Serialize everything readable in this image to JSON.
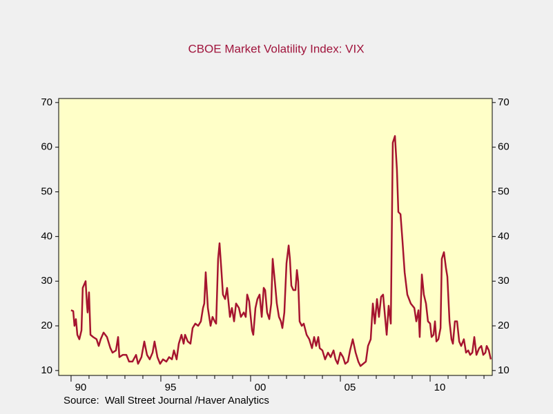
{
  "chart_data": {
    "type": "line",
    "title": "CBOE Market Volatility Index: VIX",
    "source": "Source:  Wall Street Journal /Haver Analytics",
    "xlim": [
      1989.31,
      2013.46
    ],
    "xticks": [
      {
        "value": 1990,
        "label": "90"
      },
      {
        "value": 1995,
        "label": "95"
      },
      {
        "value": 2000,
        "label": "00"
      },
      {
        "value": 2005,
        "label": "05"
      },
      {
        "value": 2010,
        "label": "10"
      }
    ],
    "xminor_ticks": [
      1991,
      1992,
      1993,
      1994,
      1996,
      1997,
      1998,
      1999,
      2001,
      2002,
      2003,
      2004,
      2006,
      2007,
      2008,
      2009,
      2011,
      2012,
      2013
    ],
    "ylim": [
      8.9,
      70.9
    ],
    "yticks": [
      10,
      20,
      30,
      40,
      50,
      60,
      70
    ],
    "y2lim": [
      8.9,
      70.9
    ],
    "y2ticks": [
      10,
      20,
      30,
      40,
      50,
      60,
      70
    ],
    "background": "#ffffc8",
    "series": [
      {
        "color": "#a5142f",
        "x": [
          1990.0,
          1990.12,
          1990.19,
          1990.27,
          1990.35,
          1990.46,
          1990.58,
          1990.65,
          1990.81,
          1990.88,
          1990.92,
          1991.0,
          1991.08,
          1991.23,
          1991.42,
          1991.54,
          1991.65,
          1991.81,
          1992.0,
          1992.19,
          1992.31,
          1992.5,
          1992.62,
          1992.69,
          1992.88,
          1993.08,
          1993.23,
          1993.42,
          1993.62,
          1993.73,
          1993.92,
          1994.08,
          1994.23,
          1994.38,
          1994.54,
          1994.65,
          1994.81,
          1994.96,
          1995.12,
          1995.31,
          1995.46,
          1995.62,
          1995.73,
          1995.88,
          1996.0,
          1996.15,
          1996.27,
          1996.35,
          1996.5,
          1996.65,
          1996.77,
          1996.92,
          1997.08,
          1997.23,
          1997.35,
          1997.42,
          1997.5,
          1997.62,
          1997.77,
          1997.88,
          1998.0,
          1998.08,
          1998.19,
          1998.27,
          1998.38,
          1998.46,
          1998.58,
          1998.69,
          1998.85,
          1998.96,
          1999.08,
          1999.19,
          1999.35,
          1999.46,
          1999.62,
          1999.73,
          1999.81,
          1999.92,
          2000.08,
          2000.15,
          2000.27,
          2000.38,
          2000.5,
          2000.62,
          2000.73,
          2000.81,
          2000.92,
          2001.04,
          2001.15,
          2001.23,
          2001.35,
          2001.46,
          2001.58,
          2001.69,
          2001.77,
          2001.88,
          2002.0,
          2002.12,
          2002.19,
          2002.27,
          2002.38,
          2002.5,
          2002.58,
          2002.65,
          2002.73,
          2002.85,
          2002.96,
          2003.12,
          2003.27,
          2003.42,
          2003.54,
          2003.65,
          2003.77,
          2003.85,
          2004.0,
          2004.15,
          2004.31,
          2004.46,
          2004.62,
          2004.73,
          2004.85,
          2005.0,
          2005.15,
          2005.27,
          2005.42,
          2005.54,
          2005.69,
          2005.85,
          2006.0,
          2006.12,
          2006.27,
          2006.42,
          2006.54,
          2006.69,
          2006.81,
          2006.92,
          2007.04,
          2007.15,
          2007.27,
          2007.38,
          2007.5,
          2007.58,
          2007.69,
          2007.81,
          2007.92,
          2008.04,
          2008.15,
          2008.23,
          2008.35,
          2008.46,
          2008.58,
          2008.73,
          2008.92,
          2009.12,
          2009.23,
          2009.35,
          2009.42,
          2009.54,
          2009.65,
          2009.77,
          2009.88,
          2010.0,
          2010.08,
          2010.19,
          2010.27,
          2010.35,
          2010.46,
          2010.58,
          2010.65,
          2010.77,
          2010.88,
          2010.96,
          2011.08,
          2011.19,
          2011.27,
          2011.38,
          2011.5,
          2011.62,
          2011.73,
          2011.88,
          2012.0,
          2012.12,
          2012.23,
          2012.35,
          2012.46,
          2012.58,
          2012.73,
          2012.85,
          2012.96,
          2013.08,
          2013.15,
          2013.27,
          2013.38
        ],
        "values": [
          23.5,
          23.3,
          20,
          21.5,
          18,
          17,
          19,
          28.5,
          30,
          25,
          23,
          27.5,
          18,
          17.5,
          17,
          15.5,
          17,
          18.5,
          17.5,
          15,
          14,
          14.5,
          17.5,
          13,
          13.5,
          13.5,
          12,
          12,
          13.5,
          11.5,
          13,
          16.5,
          13.5,
          12.5,
          14,
          16.5,
          13,
          11.5,
          12.5,
          12,
          13,
          12.5,
          14.5,
          12.5,
          16,
          18,
          16,
          18,
          16.5,
          16,
          19.5,
          20.5,
          20,
          21,
          24,
          25,
          32,
          24,
          20,
          22,
          21,
          20.5,
          35,
          38.5,
          32,
          27,
          26,
          28.5,
          22,
          24,
          21,
          25,
          24,
          22,
          23,
          22,
          27,
          25.5,
          19,
          18,
          24,
          26,
          27,
          22,
          28.5,
          28,
          23,
          21.5,
          25,
          35,
          30,
          25,
          22,
          21,
          19.5,
          23,
          34,
          38,
          35,
          29,
          28,
          28,
          32.5,
          30,
          21,
          20,
          20.5,
          18,
          17,
          15,
          17.5,
          15.5,
          17.5,
          15,
          14.5,
          12.5,
          14,
          13,
          14.5,
          12.5,
          11.5,
          14,
          13,
          11.5,
          12,
          14.5,
          17,
          14,
          12,
          11,
          11.5,
          12,
          15.5,
          17,
          25,
          20.5,
          26,
          22,
          26.5,
          27,
          21.5,
          18,
          24.5,
          20.5,
          61,
          62.5,
          55,
          45.5,
          45,
          39,
          32,
          27,
          25,
          24,
          21,
          23.5,
          17.5,
          31.5,
          27,
          25,
          21,
          20.5,
          17.5,
          18,
          21,
          16.5,
          17,
          19.5,
          35,
          36.5,
          33,
          31,
          21,
          17,
          16,
          21,
          21,
          16.5,
          15.5,
          17,
          14,
          14.5,
          13.5,
          14,
          17.5,
          13.5,
          15,
          15.5,
          13.5,
          14,
          15.5,
          14.5,
          12.5
        ]
      }
    ]
  }
}
